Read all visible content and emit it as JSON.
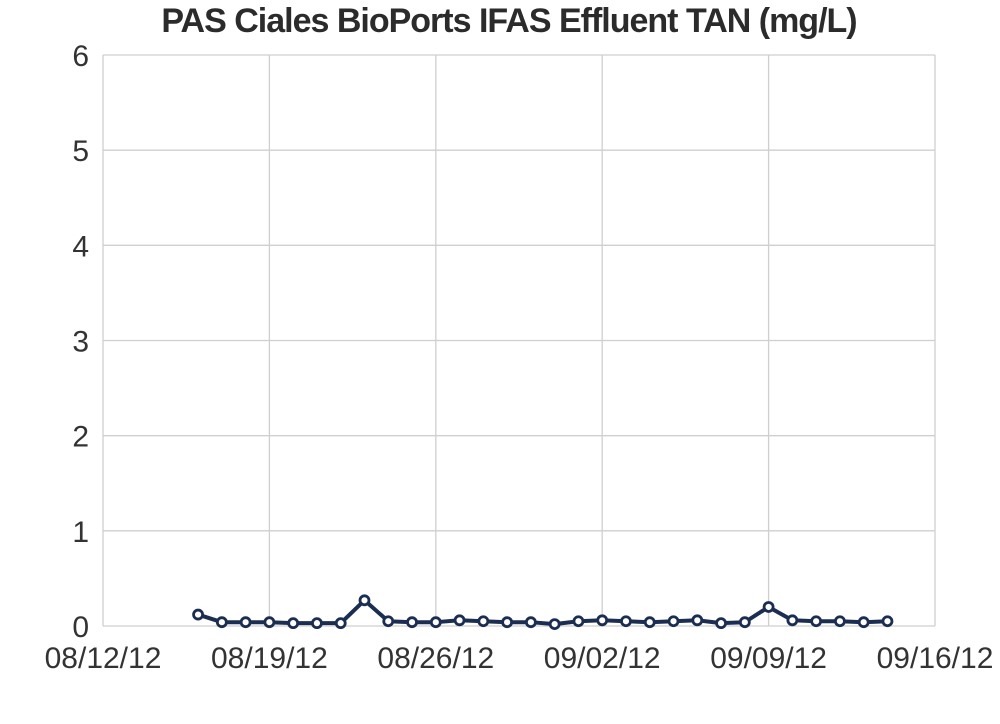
{
  "chart_data": {
    "type": "line",
    "title": "PAS Ciales BioPorts IFAS Effluent TAN (mg/L)",
    "xlabel": "",
    "ylabel": "",
    "x_tick_labels": [
      "08/12/12",
      "08/19/12",
      "08/26/12",
      "09/02/12",
      "09/09/12",
      "09/16/12"
    ],
    "x_range": [
      "2012-08-12",
      "2012-09-16"
    ],
    "y_tick_labels": [
      "0",
      "1",
      "2",
      "3",
      "4",
      "5",
      "6"
    ],
    "ylim": [
      0,
      6
    ],
    "grid": true,
    "legend": "none",
    "series": [
      {
        "color": "#1c2d52",
        "marker": "open-circle",
        "x": [
          "2012-08-16",
          "2012-08-17",
          "2012-08-18",
          "2012-08-19",
          "2012-08-20",
          "2012-08-21",
          "2012-08-22",
          "2012-08-23",
          "2012-08-24",
          "2012-08-25",
          "2012-08-26",
          "2012-08-27",
          "2012-08-28",
          "2012-08-29",
          "2012-08-30",
          "2012-08-31",
          "2012-09-01",
          "2012-09-02",
          "2012-09-03",
          "2012-09-04",
          "2012-09-05",
          "2012-09-06",
          "2012-09-07",
          "2012-09-08",
          "2012-09-09",
          "2012-09-10",
          "2012-09-11",
          "2012-09-12",
          "2012-09-13",
          "2012-09-14"
        ],
        "values": [
          0.12,
          0.04,
          0.04,
          0.04,
          0.03,
          0.03,
          0.03,
          0.27,
          0.05,
          0.04,
          0.04,
          0.06,
          0.05,
          0.04,
          0.04,
          0.02,
          0.05,
          0.06,
          0.05,
          0.04,
          0.05,
          0.06,
          0.03,
          0.04,
          0.2,
          0.06,
          0.05,
          0.05,
          0.04,
          0.05
        ]
      }
    ]
  }
}
